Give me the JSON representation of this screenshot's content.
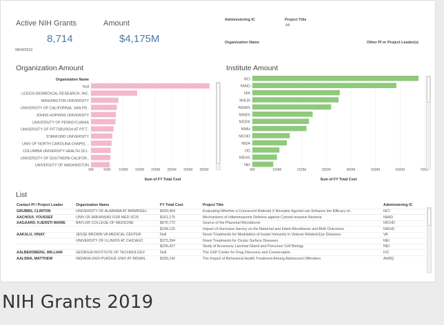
{
  "kpis": {
    "grants_label": "Active NIH Grants",
    "grants_value": "8,714",
    "amount_label": "Amount",
    "amount_value": "$4,175M",
    "date": "08/04/2019"
  },
  "filters": {
    "administering_ic_label": "Administering IC",
    "project_title_label": "Project Title",
    "project_title_value": "All",
    "organization_name_label": "Organization Name",
    "other_pi_label": "Other PI or Project Leader(s)"
  },
  "org_chart": {
    "title": "Organization Amount",
    "header": "Organization Name",
    "bar_color": "#f3b8cc",
    "chart_data": {
      "type": "bar",
      "orientation": "horizontal",
      "categories": [
        "Null",
        "LEIDOS BIOMEDICAL RESEARCH, INC.",
        "WASHINGTON UNIVERSITY",
        "UNIVERSITY OF CALIFORNIA, SAN FR..",
        "JOHNS HOPKINS UNIVERSITY",
        "UNIVERSITY OF PENNSYLVANIA",
        "UNIVERSITY OF PITTSBURGH AT PITT..",
        "STANFORD UNIVERSITY",
        "UNIV OF NORTH CAROLINA CHAPEL ..",
        "COLUMBIA UNIVERSITY HEALTH SCI..",
        "UNIVERSITY OF SOUTHERN CALIFOR..",
        "UNIVERSITY OF WASHINGTON"
      ],
      "values": [
        367,
        143,
        85,
        80,
        77,
        76,
        70,
        66,
        64,
        61,
        60,
        58
      ],
      "xlabel": "Sum of FY Total Cost",
      "ylabel": "Organization Name",
      "xlim": [
        0,
        380
      ],
      "ticks": [
        0,
        50,
        100,
        150,
        200,
        250,
        300,
        350
      ],
      "tick_labels": [
        "0M",
        "50M",
        "100M",
        "150M",
        "200M",
        "250M",
        "300M",
        "350M"
      ],
      "grid": true
    }
  },
  "inst_chart": {
    "title": "Institute Amount",
    "bar_color": "#90c97c",
    "chart_data": {
      "type": "bar",
      "orientation": "horizontal",
      "categories": [
        "NCI",
        "NIAID",
        "NIA",
        "NHLBI",
        "NIGMS",
        "NINDS",
        "NIDDK",
        "NIMH",
        "NICHD",
        "NIDA",
        "OD",
        "NIEHS",
        "NEI"
      ],
      "values": [
        675,
        585,
        355,
        350,
        320,
        245,
        230,
        220,
        152,
        140,
        110,
        100,
        85
      ],
      "xlabel": "Sum of FY Total Cost",
      "xlim": [
        0,
        700
      ],
      "ticks": [
        0,
        100,
        200,
        300,
        400,
        500,
        600,
        700
      ],
      "tick_labels": [
        "0M",
        "100M",
        "200M",
        "300M",
        "400M",
        "500M",
        "600M",
        "700M"
      ],
      "grid": true
    }
  },
  "list": {
    "title": "List",
    "columns": [
      "Contact PI / Project Leader",
      "Organization Name",
      "FY Total Cost",
      "Project Title",
      "Administering IC"
    ],
    "rows": [
      [
        "GRUBBS, CLINTON",
        "UNIVERSITY OF ALABAMA AT BIRMINGH..",
        "$930,464",
        "Evaluating Whether a Concurrent Retinoid X Receptor Agonist can Enhance the Efficacy of..",
        "NCI"
      ],
      [
        "AACHOUI, YOUSSEF",
        "UNIV OF ARKANSAS FOR MED SCIS",
        "$161,175",
        "Mechanisms of Inflammasome Defense against Cytosol-invasive Bacteria",
        "NIAID"
      ],
      [
        "AAGAARD, KJERSTI MARIE",
        "BAYLOR COLLEGE OF MEDICINE",
        "$676,772",
        "Source of the Placental Microbiome",
        "NICHD"
      ],
      [
        "",
        "",
        "$198,125",
        "Impact of Hurricane Harvey on the Maternal and Infant Microbiome and Birth Outcomes",
        "NIEHS"
      ],
      [
        "AAKALU, VINAY",
        "JESSE BROWN VA MEDICAL CENTER",
        "Null",
        "Novel Treatments for Modulation of Innate Immunity in Veteran Related Eye Diseases",
        "VA"
      ],
      [
        "",
        "UNIVERSITY OF ILLINOIS AT CHICAGO",
        "$373,394",
        "Novel Treatments for Ocular Surface Diseases",
        "NEI"
      ],
      [
        "",
        "",
        "$236,427",
        "Study of Accessory Lacrimal Gland and Precursor Cell Biology",
        "NEI"
      ],
      [
        "AALBERSBERG, WILLIAM",
        "GEORGIA INSTITUTE OF TECHNOLOGY",
        "Null",
        "The USP Center for Drug Discovery and Conservation",
        "FIC"
      ],
      [
        "AALSMA, MATTHEW",
        "INDIANA UNIV-PURDUE UNIV AT INDIAN..",
        "$336,142",
        "The Impact of Behavioral Health Treatment Among Adolescent Offenders",
        "AHRQ"
      ]
    ]
  },
  "page": {
    "title": "NIH Grants 2019"
  }
}
